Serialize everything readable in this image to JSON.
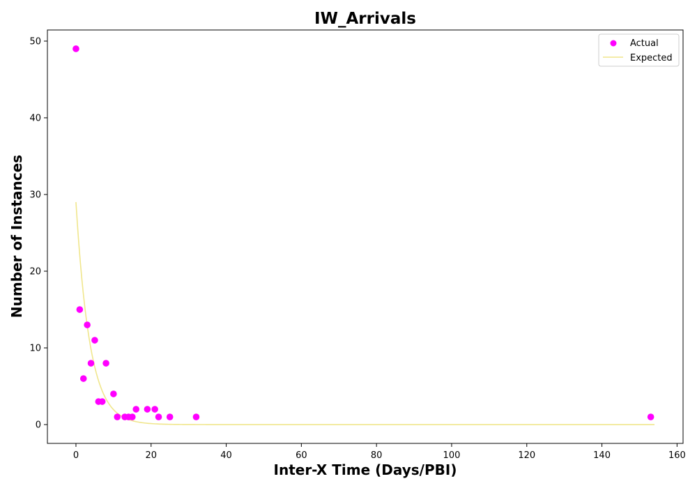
{
  "chart_data": {
    "type": "scatter",
    "title": "IW_Arrivals",
    "xlabel": "Inter-X Time (Days/PBI)",
    "ylabel": "Number of Instances",
    "xlim": [
      -7.6,
      161.6
    ],
    "ylim": [
      -2.45,
      51.45
    ],
    "xticks": [
      0,
      20,
      40,
      60,
      80,
      100,
      120,
      140,
      160
    ],
    "yticks": [
      0,
      10,
      20,
      30,
      40,
      50
    ],
    "grid": false,
    "legend_position": "top-right",
    "series": [
      {
        "name": "Actual",
        "kind": "scatter",
        "color": "#ff00ff",
        "points": [
          [
            0,
            49
          ],
          [
            1,
            15
          ],
          [
            2,
            6
          ],
          [
            3,
            13
          ],
          [
            4,
            8
          ],
          [
            5,
            11
          ],
          [
            6,
            3
          ],
          [
            7,
            3
          ],
          [
            8,
            8
          ],
          [
            10,
            4
          ],
          [
            11,
            1
          ],
          [
            13,
            1
          ],
          [
            14,
            1
          ],
          [
            15,
            1
          ],
          [
            16,
            2
          ],
          [
            19,
            2
          ],
          [
            21,
            2
          ],
          [
            22,
            1
          ],
          [
            25,
            1
          ],
          [
            32,
            1
          ],
          [
            153,
            1
          ]
        ]
      },
      {
        "name": "Expected",
        "kind": "line",
        "color": "#f0e68c",
        "model": "exponential",
        "amplitude": 29,
        "rate": 0.27,
        "x_range": [
          0,
          154
        ]
      }
    ]
  }
}
